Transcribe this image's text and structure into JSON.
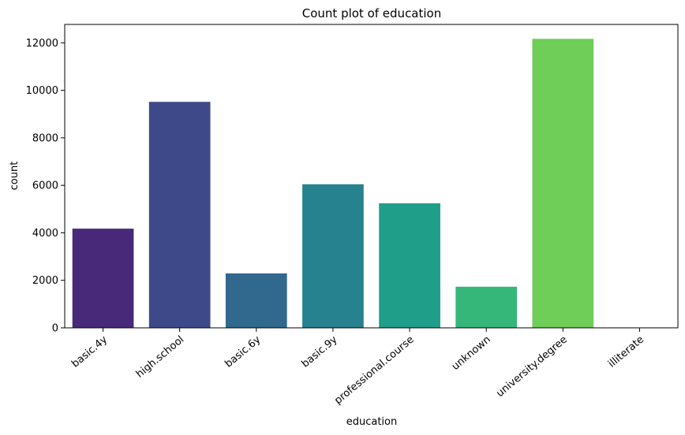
{
  "chart_data": {
    "type": "bar",
    "title": "Count plot of education",
    "xlabel": "education",
    "ylabel": "count",
    "categories": [
      "basic.4y",
      "high.school",
      "basic.6y",
      "basic.9y",
      "professional.course",
      "unknown",
      "university.degree",
      "illiterate"
    ],
    "values": [
      4176,
      9515,
      2292,
      6045,
      5243,
      1731,
      12168,
      18
    ],
    "colors": [
      "#482878",
      "#3e4989",
      "#31688e",
      "#26828e",
      "#1f9e89",
      "#35b779",
      "#6ece58",
      "#b5de2b"
    ],
    "yticks": [
      0,
      2000,
      4000,
      6000,
      8000,
      10000,
      12000
    ],
    "ylim": [
      0,
      12775
    ],
    "grid": false
  }
}
